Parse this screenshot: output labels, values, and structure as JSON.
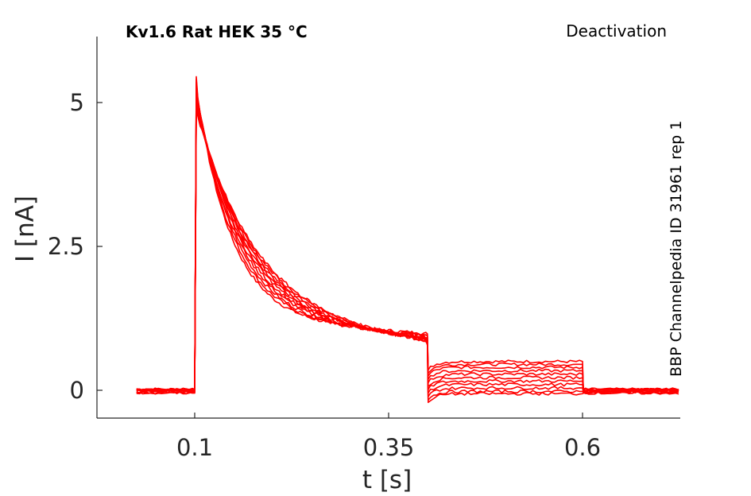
{
  "colors": {
    "trace": "#ff0000",
    "axis": "#262626",
    "background": "#ffffff"
  },
  "header": {
    "title": "Kv1.6  Rat  HEK  35 °C",
    "protocol": "Deactivation",
    "source": "BBP Channelpedia ID 31961 rep 1"
  },
  "chart_data": {
    "type": "line",
    "title": "Kv1.6  Rat  HEK  35 °C",
    "xlabel": "t [s]",
    "ylabel": "I [nA]",
    "xlim": [
      -0.0,
      0.75
    ],
    "ylim": [
      -0.45,
      6.0
    ],
    "xticks": [
      0.1,
      0.35,
      0.6
    ],
    "xtick_labels": [
      "0.1",
      "0.35",
      "0.6"
    ],
    "yticks": [
      0,
      2.5,
      5
    ],
    "ytick_labels": [
      "0",
      "2.5",
      "5"
    ],
    "grid": false,
    "legend": "none",
    "annotation_right": "Deactivation",
    "annotation_vertical": "BBP Channelpedia ID 31961 rep 1",
    "protocol_times": {
      "start": 0.025,
      "step_on": 0.1,
      "step_off": 0.4,
      "tail_off": 0.6,
      "end": 0.725
    },
    "series": [
      {
        "baseline": 0.02,
        "peak": 5.45,
        "end_step": 0.98,
        "tail": 0.5
      },
      {
        "baseline": 0.02,
        "peak": 5.4,
        "end_step": 0.96,
        "tail": 0.45
      },
      {
        "baseline": 0.01,
        "peak": 5.35,
        "end_step": 0.94,
        "tail": 0.4
      },
      {
        "baseline": 0.01,
        "peak": 5.3,
        "end_step": 0.92,
        "tail": 0.34
      },
      {
        "baseline": 0.0,
        "peak": 5.25,
        "end_step": 0.9,
        "tail": 0.28
      },
      {
        "baseline": 0.0,
        "peak": 5.2,
        "end_step": 0.88,
        "tail": 0.22
      },
      {
        "baseline": -0.01,
        "peak": 5.15,
        "end_step": 0.86,
        "tail": 0.16
      },
      {
        "baseline": -0.02,
        "peak": 5.1,
        "end_step": 0.84,
        "tail": 0.1
      },
      {
        "baseline": -0.03,
        "peak": 5.05,
        "end_step": 0.82,
        "tail": 0.04
      },
      {
        "baseline": -0.04,
        "peak": 5.0,
        "end_step": 0.8,
        "tail": -0.02
      },
      {
        "baseline": -0.05,
        "peak": 4.95,
        "end_step": 0.78,
        "tail": -0.06
      }
    ]
  }
}
